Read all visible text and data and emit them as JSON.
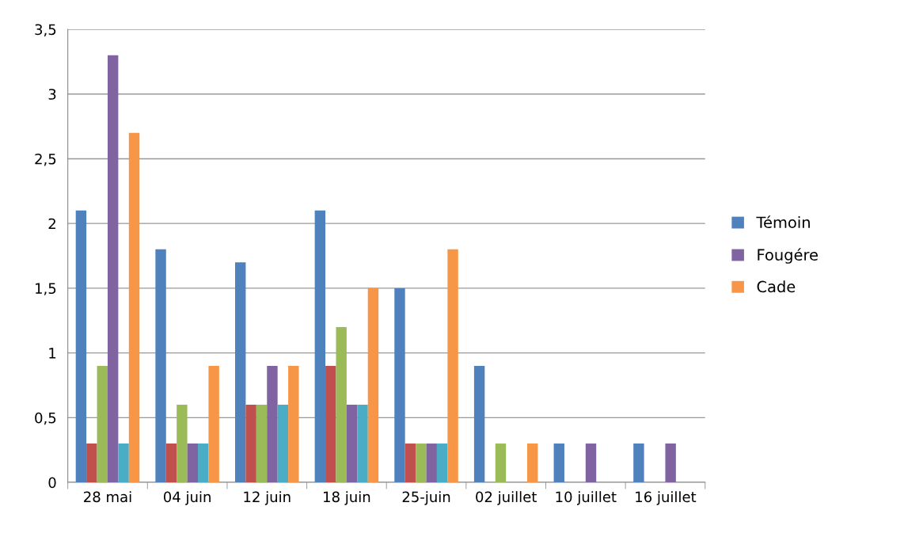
{
  "chart_data": {
    "type": "bar",
    "categories": [
      "28 mai",
      "04 juin",
      "12 juin",
      "18 juin",
      "25-juin",
      "02 juillet",
      "10 juillet",
      "16 juillet"
    ],
    "series": [
      {
        "name": "Témoin",
        "color": "#4f81bd",
        "values": [
          2.1,
          1.8,
          1.7,
          2.1,
          1.5,
          0.9,
          0.3,
          0.3
        ]
      },
      {
        "color": "#c0504d",
        "values": [
          0.3,
          0.3,
          0.6,
          0.9,
          0.3,
          0,
          0,
          0
        ]
      },
      {
        "color": "#9bbb59",
        "values": [
          0.9,
          0.6,
          0.6,
          1.2,
          0.3,
          0.3,
          0,
          0
        ]
      },
      {
        "name": "Fougére",
        "color": "#8064a2",
        "values": [
          3.3,
          0.3,
          0.9,
          0.6,
          0.3,
          0,
          0.3,
          0.3
        ]
      },
      {
        "color": "#4bacc6",
        "values": [
          0.3,
          0.3,
          0.6,
          0.6,
          0.3,
          0,
          0,
          0
        ]
      },
      {
        "name": "Cade",
        "color": "#f79646",
        "values": [
          2.7,
          0.9,
          0.9,
          1.5,
          1.8,
          0.3,
          0,
          0
        ]
      }
    ],
    "ylim": [
      0,
      3.5
    ],
    "yticks": [
      0,
      {
        "value": 0.5,
        "label": "0,5"
      },
      1,
      {
        "value": 1.5,
        "label": "1,5"
      },
      2,
      {
        "value": 2.5,
        "label": "2,5"
      },
      3,
      {
        "value": 3.5,
        "label": "3,5"
      }
    ],
    "grid": "y",
    "legend": "right"
  }
}
